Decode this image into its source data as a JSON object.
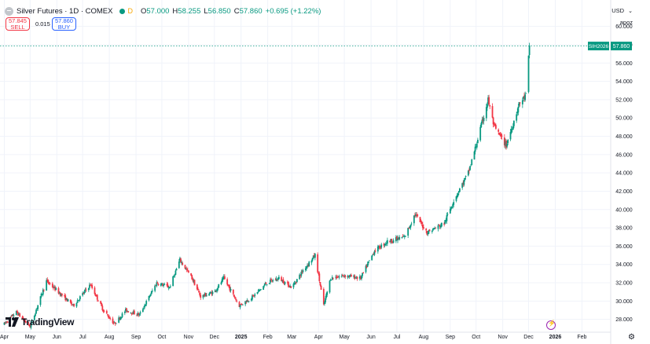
{
  "legend": {
    "title": "Silver Futures · 1D · COMEX",
    "interval_marker": "D",
    "o_label": "O",
    "o_value": "57.000",
    "h_label": "H",
    "h_value": "58.255",
    "l_label": "L",
    "l_value": "56.850",
    "c_label": "C",
    "c_value": "57.860",
    "change": "+0.695 (+1.22%)"
  },
  "trade": {
    "sell_price": "57.845",
    "sell_label": "SELL",
    "spread": "0.015",
    "buy_price": "57.860",
    "buy_label": "BUY"
  },
  "axis": {
    "currency": "USD",
    "currency_caret": "⌄",
    "mode": "apoz"
  },
  "logo_text": "TradingView",
  "colors": {
    "up": "#089981",
    "down": "#f23645",
    "grid": "#f0f3fa",
    "price_line": "#089981"
  },
  "chart_data": {
    "type": "candlestick",
    "symbol_label": "SIH2026",
    "last_price": "57.860",
    "ylim": [
      26.6,
      62.2
    ],
    "y_ticks": [
      "28.000",
      "30.000",
      "32.000",
      "34.000",
      "36.000",
      "38.000",
      "40.000",
      "42.000",
      "44.000",
      "46.000",
      "48.000",
      "50.000",
      "52.000",
      "54.000",
      "56.000",
      "58.000",
      "60.000"
    ],
    "x_ticks": [
      "Apr",
      "May",
      "Jun",
      "Jul",
      "Aug",
      "Sep",
      "Oct",
      "Nov",
      "Dec",
      "2025",
      "Feb",
      "Mar",
      "Apr",
      "May",
      "Jun",
      "Jul",
      "Aug",
      "Sep",
      "Oct",
      "Nov",
      "Dec",
      "2026",
      "Feb"
    ],
    "x_tick_bold": [
      "2025",
      "2026"
    ],
    "series_close_approx": [
      [
        "2024-04-01",
        27.5
      ],
      [
        "2024-04-15",
        28.8
      ],
      [
        "2024-05-01",
        27.2
      ],
      [
        "2024-05-20",
        32.2
      ],
      [
        "2024-06-05",
        30.8
      ],
      [
        "2024-06-20",
        29.5
      ],
      [
        "2024-07-10",
        31.8
      ],
      [
        "2024-07-25",
        29.0
      ],
      [
        "2024-08-07",
        27.5
      ],
      [
        "2024-08-20",
        29.0
      ],
      [
        "2024-09-05",
        28.5
      ],
      [
        "2024-09-25",
        32.0
      ],
      [
        "2024-10-10",
        31.5
      ],
      [
        "2024-10-22",
        34.5
      ],
      [
        "2024-11-05",
        32.5
      ],
      [
        "2024-11-15",
        30.5
      ],
      [
        "2024-12-01",
        31.0
      ],
      [
        "2024-12-12",
        32.5
      ],
      [
        "2024-12-30",
        29.5
      ],
      [
        "2025-01-15",
        30.5
      ],
      [
        "2025-01-31",
        32.0
      ],
      [
        "2025-02-14",
        32.5
      ],
      [
        "2025-03-01",
        31.5
      ],
      [
        "2025-03-15",
        33.5
      ],
      [
        "2025-03-28",
        35.0
      ],
      [
        "2025-04-07",
        29.5
      ],
      [
        "2025-04-15",
        32.5
      ],
      [
        "2025-05-01",
        32.8
      ],
      [
        "2025-05-20",
        32.5
      ],
      [
        "2025-06-05",
        35.5
      ],
      [
        "2025-06-20",
        36.5
      ],
      [
        "2025-07-10",
        37.0
      ],
      [
        "2025-07-22",
        39.5
      ],
      [
        "2025-08-05",
        37.5
      ],
      [
        "2025-08-25",
        38.5
      ],
      [
        "2025-09-05",
        41.0
      ],
      [
        "2025-09-22",
        44.0
      ],
      [
        "2025-10-01",
        47.0
      ],
      [
        "2025-10-15",
        52.0
      ],
      [
        "2025-10-22",
        49.0
      ],
      [
        "2025-11-05",
        47.0
      ],
      [
        "2025-11-20",
        51.5
      ],
      [
        "2025-11-28",
        52.5
      ],
      [
        "2025-12-02",
        57.86
      ]
    ]
  }
}
